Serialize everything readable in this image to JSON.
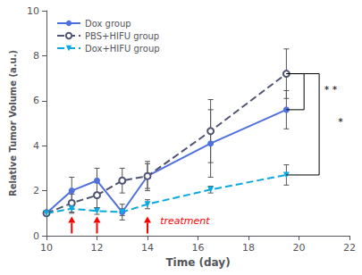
{
  "chart_data": {
    "type": "line",
    "xlabel": "Time (day)",
    "ylabel": "Relative Tumor Volume (a.u.)",
    "xlim": [
      10,
      22
    ],
    "ylim": [
      0,
      10
    ],
    "xticks": [
      10,
      12,
      14,
      16,
      18,
      20,
      22
    ],
    "yticks": [
      0,
      2,
      4,
      6,
      8,
      10
    ],
    "grid": false,
    "legend": "upper left",
    "x": [
      10,
      11,
      12,
      13,
      14,
      16.5,
      19.5
    ],
    "series": [
      {
        "name": "Dox group",
        "values": [
          1.0,
          2.0,
          2.45,
          1.05,
          2.65,
          4.1,
          5.6
        ],
        "error": [
          0.05,
          0.6,
          0.55,
          0.35,
          0.55,
          1.5,
          0.85
        ],
        "marker": "circle",
        "line_style": "solid"
      },
      {
        "name": "PBS+HIFU group",
        "values": [
          1.0,
          1.45,
          1.8,
          2.45,
          2.65,
          4.65,
          7.2
        ],
        "error": [
          0.05,
          0.4,
          0.55,
          0.55,
          0.65,
          1.4,
          1.1
        ],
        "marker": "open_circle",
        "line_style": "dashed"
      },
      {
        "name": "Dox+HIFU group",
        "values": [
          1.0,
          1.2,
          1.1,
          1.05,
          1.4,
          2.05,
          2.7
        ],
        "error": [
          0.05,
          0.2,
          0.15,
          0.15,
          0.2,
          0.15,
          0.45
        ],
        "marker": "triangle_down",
        "line_style": "dashed"
      }
    ],
    "arrows": {
      "x": [
        11,
        12,
        14
      ],
      "from_y": 0.1,
      "to_y": 0.85,
      "color": "red"
    },
    "texts": [
      {
        "text": "treatment",
        "x": 14.5,
        "y": 0.42,
        "color": "red"
      }
    ],
    "brackets": [
      {
        "x_start": 19.5,
        "x": 20.2,
        "y": [
          5.6,
          7.2
        ],
        "text": "* *",
        "text_x": 21.0,
        "text_y": 6.5
      },
      {
        "x_start": 19.5,
        "x": 20.8,
        "y": [
          2.7,
          7.2
        ],
        "text": "*",
        "text_x": 21.55,
        "text_y": 5.05
      }
    ]
  }
}
